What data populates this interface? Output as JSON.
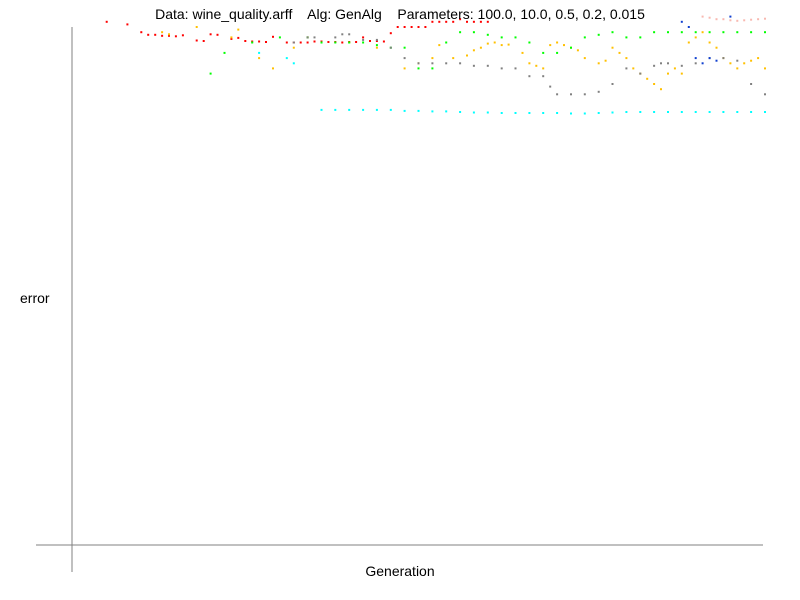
{
  "chart_data": {
    "type": "scatter",
    "title": "Data: wine_quality.arff    Alg: GenAlg    Parameters: 100.0, 10.0, 0.5, 0.2, 0.015",
    "xlabel": "Generation",
    "ylabel": "error",
    "grid": false,
    "legend": "none",
    "xlim": [
      0,
      100
    ],
    "ylim": [
      0,
      100
    ],
    "series": [
      {
        "color": "#ff0000",
        "x": [
          5,
          8,
          10,
          11,
          12,
          13,
          14,
          15,
          16,
          18,
          19,
          20,
          21,
          23,
          24,
          25,
          26,
          27,
          28,
          29,
          31,
          32,
          33,
          34,
          35,
          36,
          37,
          38,
          39,
          40,
          41,
          42,
          43,
          44,
          45,
          46,
          47,
          48,
          49,
          50,
          51,
          52,
          53,
          54,
          55,
          56,
          57,
          58,
          59,
          60
        ],
        "y": [
          101,
          100.5,
          99,
          98.5,
          98.5,
          98.3,
          98.3,
          98.2,
          98.4,
          97.4,
          97.3,
          98.6,
          98.5,
          97.7,
          97.9,
          97.3,
          97.2,
          97.2,
          97.1,
          98.1,
          97.0,
          97.0,
          97.0,
          97.0,
          97.2,
          97.2,
          97.1,
          97.1,
          97.0,
          97.1,
          97.1,
          98,
          97.3,
          97.3,
          97.2,
          98.8,
          100,
          100,
          100,
          100,
          100,
          101,
          101,
          101,
          101,
          101.5,
          101,
          101,
          101,
          101
        ]
      },
      {
        "color": "#ffc000",
        "x": [
          13,
          14,
          18,
          23,
          24,
          27,
          29,
          32,
          34,
          36,
          40,
          44,
          48,
          50,
          52,
          53,
          55,
          57,
          58,
          59,
          60,
          61,
          62,
          63,
          65,
          66,
          67,
          68,
          69,
          70,
          71,
          72,
          73,
          74,
          76,
          77,
          78,
          79,
          80,
          81,
          82,
          83,
          84,
          85,
          86,
          87,
          88,
          89,
          90,
          91,
          92,
          93,
          94,
          95,
          96,
          97,
          98,
          99,
          100
        ],
        "y": [
          99,
          98.6,
          100,
          98,
          99.5,
          94,
          92,
          96,
          98,
          97,
          97,
          96,
          92,
          93,
          94,
          96.5,
          94,
          94.5,
          95.5,
          96,
          96.8,
          97,
          96.5,
          96.6,
          95,
          93,
          92.5,
          92,
          96.5,
          97,
          96.5,
          96,
          95.5,
          94,
          93,
          93.5,
          96,
          95,
          94,
          92,
          91,
          90,
          89,
          88,
          91,
          92,
          91,
          97,
          98,
          99,
          97,
          96,
          94,
          93,
          92,
          93,
          93.5,
          94,
          92
        ]
      },
      {
        "color": "#00ff00",
        "x": [
          20,
          22,
          26,
          30,
          34,
          36,
          38,
          40,
          42,
          44,
          46,
          48,
          50,
          52,
          54,
          56,
          58,
          60,
          62,
          64,
          66,
          68,
          70,
          72,
          74,
          76,
          78,
          80,
          82,
          84,
          86,
          88,
          90,
          92,
          94,
          96,
          98,
          100
        ],
        "y": [
          91,
          95,
          97,
          98,
          98,
          97,
          97,
          97,
          97,
          96.5,
          96,
          96,
          92,
          92,
          97,
          99,
          99,
          98.5,
          98,
          98,
          97,
          95,
          95,
          96,
          98,
          98.5,
          99,
          98,
          98,
          99,
          99,
          99,
          99,
          99,
          99,
          99,
          99,
          99
        ]
      },
      {
        "color": "#00ffff",
        "x": [
          27,
          31,
          32,
          36,
          38,
          40,
          42,
          44,
          46,
          48,
          50,
          52,
          54,
          56,
          58,
          60,
          62,
          64,
          66,
          68,
          70,
          72,
          74,
          76,
          78,
          80,
          82,
          84,
          86,
          88,
          90,
          92,
          94,
          96,
          98,
          100
        ],
        "y": [
          95,
          94,
          93,
          84,
          84,
          84,
          84,
          84,
          84,
          83.8,
          83.8,
          83.7,
          83.7,
          83.6,
          83.5,
          83.5,
          83.4,
          83.4,
          83.4,
          83.4,
          83.4,
          83.3,
          83.3,
          83.4,
          83.5,
          83.6,
          83.6,
          83.6,
          83.6,
          83.6,
          83.6,
          83.6,
          83.6,
          83.6,
          83.6,
          83.6
        ]
      },
      {
        "color": "#808080",
        "x": [
          32,
          34,
          35,
          38,
          39,
          40,
          42,
          44,
          46,
          48,
          50,
          52,
          54,
          56,
          58,
          60,
          62,
          64,
          66,
          68,
          69,
          70,
          72,
          74,
          76,
          78,
          80,
          82,
          84,
          85,
          86,
          88,
          90,
          92,
          94,
          96,
          98,
          100
        ],
        "y": [
          97,
          98,
          98,
          98,
          98.6,
          98.6,
          97.5,
          97.5,
          96,
          94,
          93,
          93,
          93,
          93,
          92.5,
          92.5,
          92,
          92,
          90.5,
          90.5,
          88.5,
          87,
          87,
          87,
          87.5,
          89,
          92,
          91,
          92.5,
          93,
          93,
          92.5,
          93,
          94,
          94,
          93.5,
          89,
          87
        ]
      },
      {
        "color": "#1040d0",
        "x": [
          88,
          89,
          90,
          91,
          92,
          93,
          95
        ],
        "y": [
          101,
          100,
          94,
          93,
          94,
          93.5,
          102
        ]
      },
      {
        "color": "#f8b8b0",
        "x": [
          91,
          92,
          93,
          94,
          95,
          96,
          97,
          98,
          99,
          100
        ],
        "y": [
          102,
          101.8,
          101.5,
          101.5,
          101.3,
          101.2,
          101.3,
          101.4,
          101.5,
          101.6
        ]
      }
    ]
  }
}
